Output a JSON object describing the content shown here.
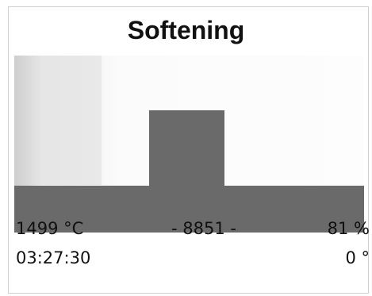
{
  "title": "Softening",
  "status": {
    "temperature": "1499 °C",
    "frame": "- 8851 -",
    "shape_factor": "81 %",
    "time": "03:27:30",
    "angle": "0 °"
  }
}
